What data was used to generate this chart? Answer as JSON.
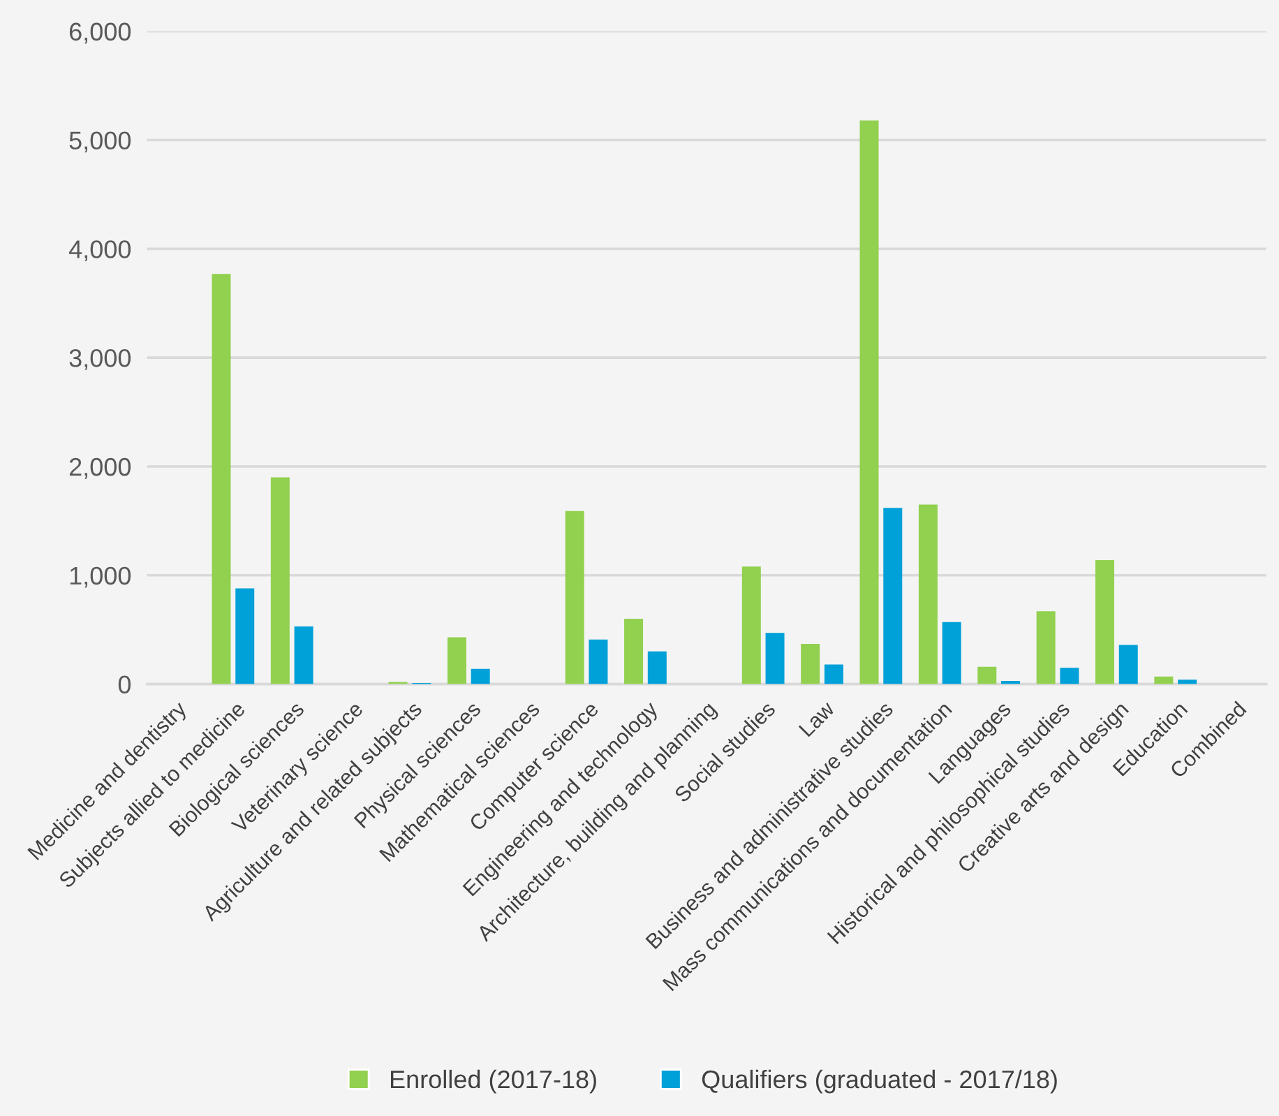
{
  "chart_data": {
    "type": "bar",
    "categories": [
      "Medicine and dentistry",
      "Subjects allied to medicine",
      "Biological sciences",
      "Veterinary science",
      "Agriculture and related subjects",
      "Physical sciences",
      "Mathematical sciences",
      "Computer science",
      "Engineering and technology",
      "Architecture, building and planning",
      "Social studies",
      "Law",
      "Business and administrative studies",
      "Mass communications and documentation",
      "Languages",
      "Historical and philosophical studies",
      "Creative arts and design",
      "Education",
      "Combined"
    ],
    "series": [
      {
        "name": "Enrolled (2017-18)",
        "color": "#92d050",
        "values": [
          0,
          3770,
          1900,
          0,
          20,
          430,
          0,
          1590,
          600,
          0,
          1080,
          370,
          5180,
          1650,
          160,
          670,
          1140,
          70,
          0
        ]
      },
      {
        "name": "Qualifiers (graduated - 2017/18)",
        "color": "#00a0d8",
        "values": [
          0,
          880,
          530,
          0,
          10,
          140,
          0,
          410,
          300,
          0,
          470,
          180,
          1620,
          570,
          30,
          150,
          360,
          40,
          0
        ]
      }
    ],
    "ylim": [
      0,
      6000
    ],
    "yticks": [
      {
        "value": 0,
        "label": "0"
      },
      {
        "value": 1000,
        "label": "1,000"
      },
      {
        "value": 2000,
        "label": "2,000"
      },
      {
        "value": 3000,
        "label": "3,000"
      },
      {
        "value": 4000,
        "label": "4,000"
      },
      {
        "value": 5000,
        "label": "5,000"
      },
      {
        "value": 6000,
        "label": "6,000"
      }
    ],
    "grid": "y",
    "legend": "bottom"
  }
}
